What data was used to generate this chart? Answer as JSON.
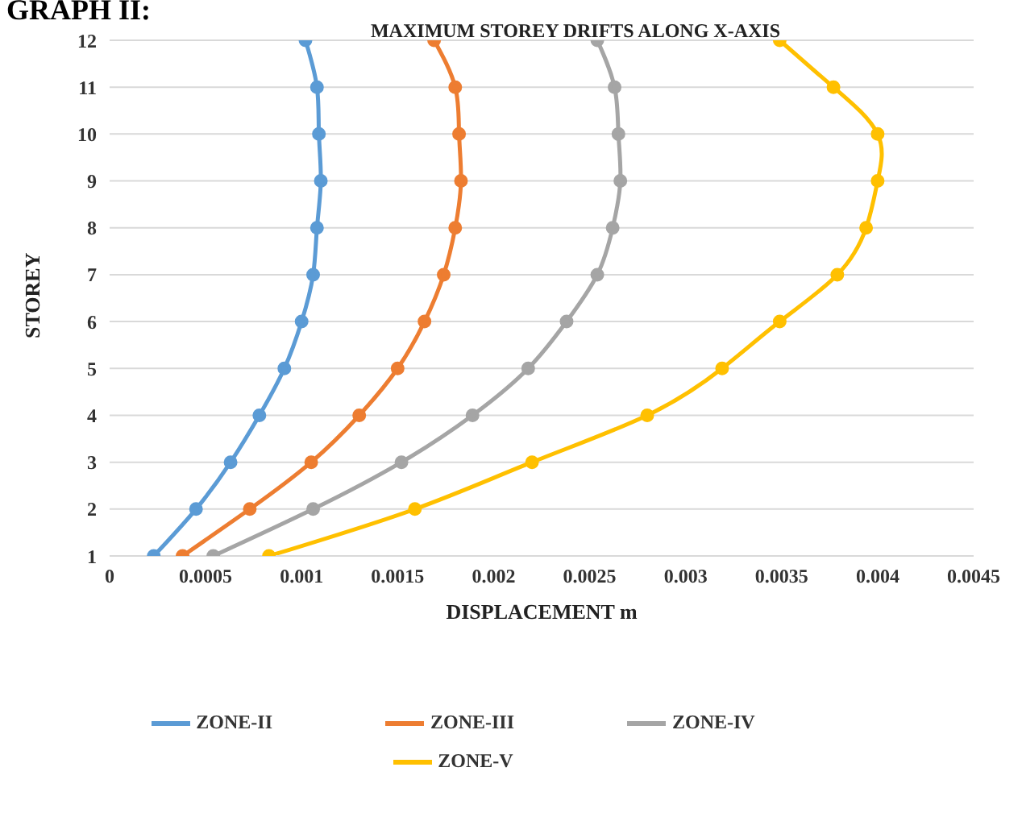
{
  "chart_data": {
    "type": "line",
    "title": "MAXIMUM STOREY DRIFTS ALONG X-AXIS",
    "xlabel": "DISPLACEMENT m",
    "ylabel": "STOREY",
    "annotations": [
      "GRAPH II:"
    ],
    "xlim": [
      0,
      0.0045
    ],
    "xticks": [
      0,
      0.0005,
      0.001,
      0.0015,
      0.002,
      0.0025,
      0.003,
      0.0035,
      0.004,
      0.0045
    ],
    "ylim": [
      1,
      12
    ],
    "yticks": [
      1,
      2,
      3,
      4,
      5,
      6,
      7,
      8,
      9,
      10,
      11,
      12
    ],
    "grid": "y",
    "legend": "bottom",
    "marker": "circle",
    "line_style": "solid",
    "series": [
      {
        "name": "ZONE-II",
        "color": "#5b9bd5",
        "x": [
          0.00023,
          0.00045,
          0.00063,
          0.00078,
          0.00091,
          0.001,
          0.00106,
          0.00108,
          0.0011,
          0.00109,
          0.00108,
          0.00102
        ],
        "values": [
          1,
          2,
          3,
          4,
          5,
          6,
          7,
          8,
          9,
          10,
          11,
          12
        ]
      },
      {
        "name": "ZONE-III",
        "color": "#ed7d31",
        "x": [
          0.00038,
          0.00073,
          0.00105,
          0.0013,
          0.0015,
          0.00164,
          0.00174,
          0.0018,
          0.00183,
          0.00182,
          0.0018,
          0.00169
        ],
        "values": [
          1,
          2,
          3,
          4,
          5,
          6,
          7,
          8,
          9,
          10,
          11,
          12
        ]
      },
      {
        "name": "ZONE-IV",
        "color": "#a5a5a5",
        "x": [
          0.00054,
          0.00106,
          0.00152,
          0.00189,
          0.00218,
          0.00238,
          0.00254,
          0.00262,
          0.00266,
          0.00265,
          0.00263,
          0.00254
        ],
        "values": [
          1,
          2,
          3,
          4,
          5,
          6,
          7,
          8,
          9,
          10,
          11,
          12
        ]
      },
      {
        "name": "ZONE-V",
        "color": "#ffc000",
        "x": [
          0.00083,
          0.00159,
          0.0022,
          0.0028,
          0.00319,
          0.00349,
          0.00379,
          0.00394,
          0.004,
          0.004,
          0.00377,
          0.00349
        ],
        "values": [
          1,
          2,
          3,
          4,
          5,
          6,
          7,
          8,
          9,
          10,
          11,
          12
        ]
      }
    ]
  }
}
